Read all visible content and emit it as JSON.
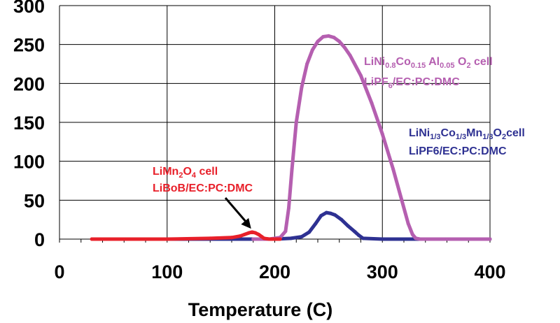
{
  "chart_data": {
    "type": "scatter",
    "title": "",
    "xlabel": "Temperature (C)",
    "ylabel": "",
    "xlim": [
      0,
      400
    ],
    "ylim": [
      0,
      300
    ],
    "xticks": [
      0,
      100,
      200,
      300,
      400
    ],
    "yticks": [
      0,
      50,
      100,
      150,
      200,
      250,
      300
    ],
    "grid": true,
    "legend": "none",
    "series": [
      {
        "name": "LiMn2O4 cell LiBoB/EC:PC:DMC",
        "color": "#e8202a",
        "x": [
          30,
          60,
          100,
          140,
          160,
          168,
          172,
          176,
          179,
          182,
          185,
          188,
          190,
          195,
          200,
          205
        ],
        "y": [
          0,
          0,
          0,
          1,
          2,
          4,
          6,
          8,
          9,
          8,
          6,
          3,
          1,
          0,
          0,
          0
        ]
      },
      {
        "name": "LiNi1/3Co1/3Mn1/3O2cell LiPF6/EC:PC:DMC",
        "color": "#2e3192",
        "x": [
          80,
          150,
          200,
          215,
          225,
          232,
          238,
          243,
          248,
          252,
          256,
          262,
          268,
          274,
          278,
          282,
          300,
          360,
          400
        ],
        "y": [
          0,
          0,
          0,
          1,
          3,
          9,
          20,
          30,
          34,
          33,
          31,
          25,
          17,
          10,
          5,
          1,
          0,
          0,
          0
        ]
      },
      {
        "name": "LiNi0.8Co0.15Al0.05O2 cell LiPF6/EC:PC:DMC",
        "color": "#b55fb0",
        "x": [
          180,
          195,
          205,
          210,
          213,
          216,
          220,
          225,
          230,
          235,
          240,
          245,
          250,
          255,
          260,
          265,
          270,
          280,
          290,
          300,
          310,
          318,
          324,
          328,
          331,
          335,
          360,
          400
        ],
        "y": [
          0,
          0,
          2,
          10,
          40,
          90,
          150,
          195,
          225,
          243,
          254,
          260,
          261,
          259,
          254,
          246,
          236,
          210,
          175,
          135,
          90,
          50,
          20,
          6,
          1,
          0,
          0,
          0
        ]
      }
    ],
    "annotations": {
      "limn": {
        "line1": "LiMn",
        "sub1": "2",
        "line1b": "O",
        "sub2": "4",
        "line1c": " cell",
        "line2": "LiBoB/EC:PC:DMC",
        "arrow_to": [
          180,
          8
        ]
      },
      "linmc": {
        "p1": "LiNi",
        "s1": "1/3",
        "p2": "Co",
        "s2": "1/3",
        "p3": "Mn",
        "s3": "1/3",
        "p4": "O",
        "s4": "2",
        "p5": "cell",
        "line2": "LiPF6/EC:PC:DMC"
      },
      "nca": {
        "p1": "LiNi",
        "s1": "0.8",
        "p2": "Co",
        "s2": "0.15",
        "p3": " Al",
        "s3": "0.05",
        "p4": " O",
        "s4": "2",
        "p5": " cell",
        "line2a": "LiPF",
        "line2s": "6",
        "line2b": "/EC:PC:DMC"
      }
    }
  }
}
